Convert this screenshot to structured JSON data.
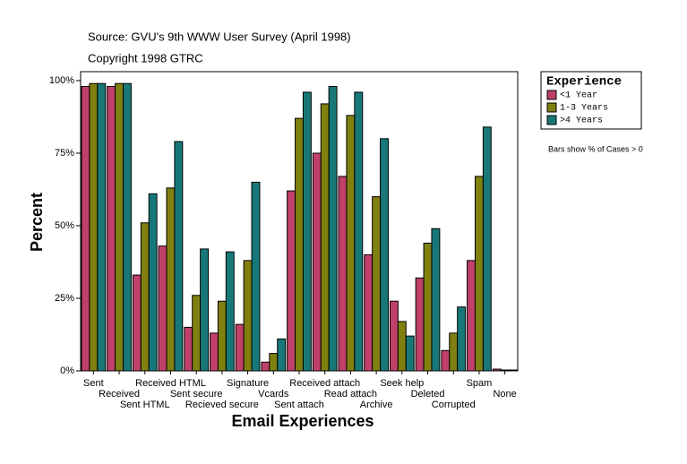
{
  "chart_data": {
    "type": "bar",
    "title": "Source: GVU's 9th WWW User Survey (April 1998)",
    "subtitle": "Copyright 1998 GTRC",
    "xlabel": "Email Experiences",
    "ylabel": "Percent",
    "legend_title": "Experience",
    "note": "Bars show % of Cases > 0",
    "categories": [
      "Sent",
      "Received",
      "Sent HTML",
      "Received HTML",
      "Sent secure",
      "Recieved secure",
      "Signature",
      "Vcards",
      "Sent attach",
      "Received attach",
      "Read attach",
      "Archive",
      "Seek help",
      "Deleted",
      "Corrupted",
      "Spam",
      "None"
    ],
    "series": [
      {
        "name": "<1 Year",
        "color": "#c0406a",
        "values": [
          98,
          98,
          33,
          43,
          15,
          13,
          16,
          3,
          62,
          75,
          67,
          40,
          24,
          32,
          7,
          38,
          0.6
        ]
      },
      {
        "name": "1-3 Years",
        "color": "#808010",
        "values": [
          99,
          99,
          51,
          63,
          26,
          24,
          38,
          6,
          87,
          92,
          88,
          60,
          17,
          44,
          13,
          67,
          0.3
        ]
      },
      {
        "name": ">4 Years",
        "color": "#187878",
        "values": [
          99,
          99,
          61,
          79,
          42,
          41,
          65,
          11,
          96,
          98,
          96,
          80,
          12,
          49,
          22,
          84,
          0.3
        ]
      }
    ],
    "ylim": [
      0,
      100
    ],
    "yticks": [
      {
        "value": 0,
        "label": "0%"
      },
      {
        "value": 25,
        "label": "25%"
      },
      {
        "value": 50,
        "label": "50%"
      },
      {
        "value": 75,
        "label": "75%"
      },
      {
        "value": 100,
        "label": "100%"
      }
    ],
    "legend": "right"
  }
}
